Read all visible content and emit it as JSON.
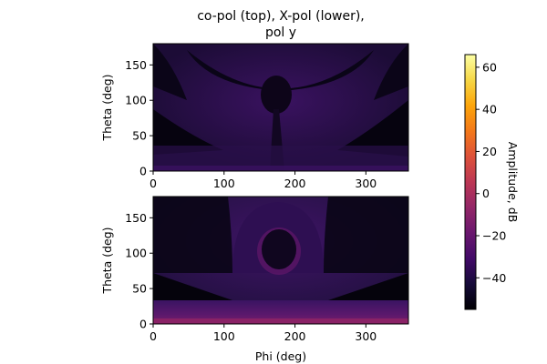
{
  "chart_data": {
    "type": "heatmap",
    "title": "co-pol (top), X-pol (lower),\npol y",
    "title_lines": [
      "co-pol (top), X-pol (lower),",
      "pol y"
    ],
    "colormap": "inferno",
    "colorbar": {
      "label": "Amplitude, dB",
      "range": [
        -55,
        66
      ],
      "ticks": [
        -40,
        -20,
        0,
        20,
        40,
        60
      ],
      "tick_labels": [
        "−40",
        "−20",
        "0",
        "20",
        "40",
        "60"
      ]
    },
    "x_axis": {
      "range": [
        0,
        360
      ],
      "ticks": [
        0,
        100,
        200,
        300
      ],
      "tick_labels": [
        "0",
        "100",
        "200",
        "300"
      ],
      "label": "Phi (deg)"
    },
    "y_axis": {
      "range": [
        0,
        180
      ],
      "ticks": [
        0,
        50,
        100,
        150
      ],
      "tick_labels": [
        "0",
        "50",
        "100",
        "150"
      ],
      "label": "Theta (deg)"
    },
    "panels": [
      {
        "name": "co-pol",
        "position": "top",
        "xlabel": "",
        "ylabel": "Theta (deg)"
      },
      {
        "name": "X-pol",
        "position": "bottom",
        "xlabel": "Phi (deg)",
        "ylabel": "Theta (deg)"
      }
    ]
  }
}
